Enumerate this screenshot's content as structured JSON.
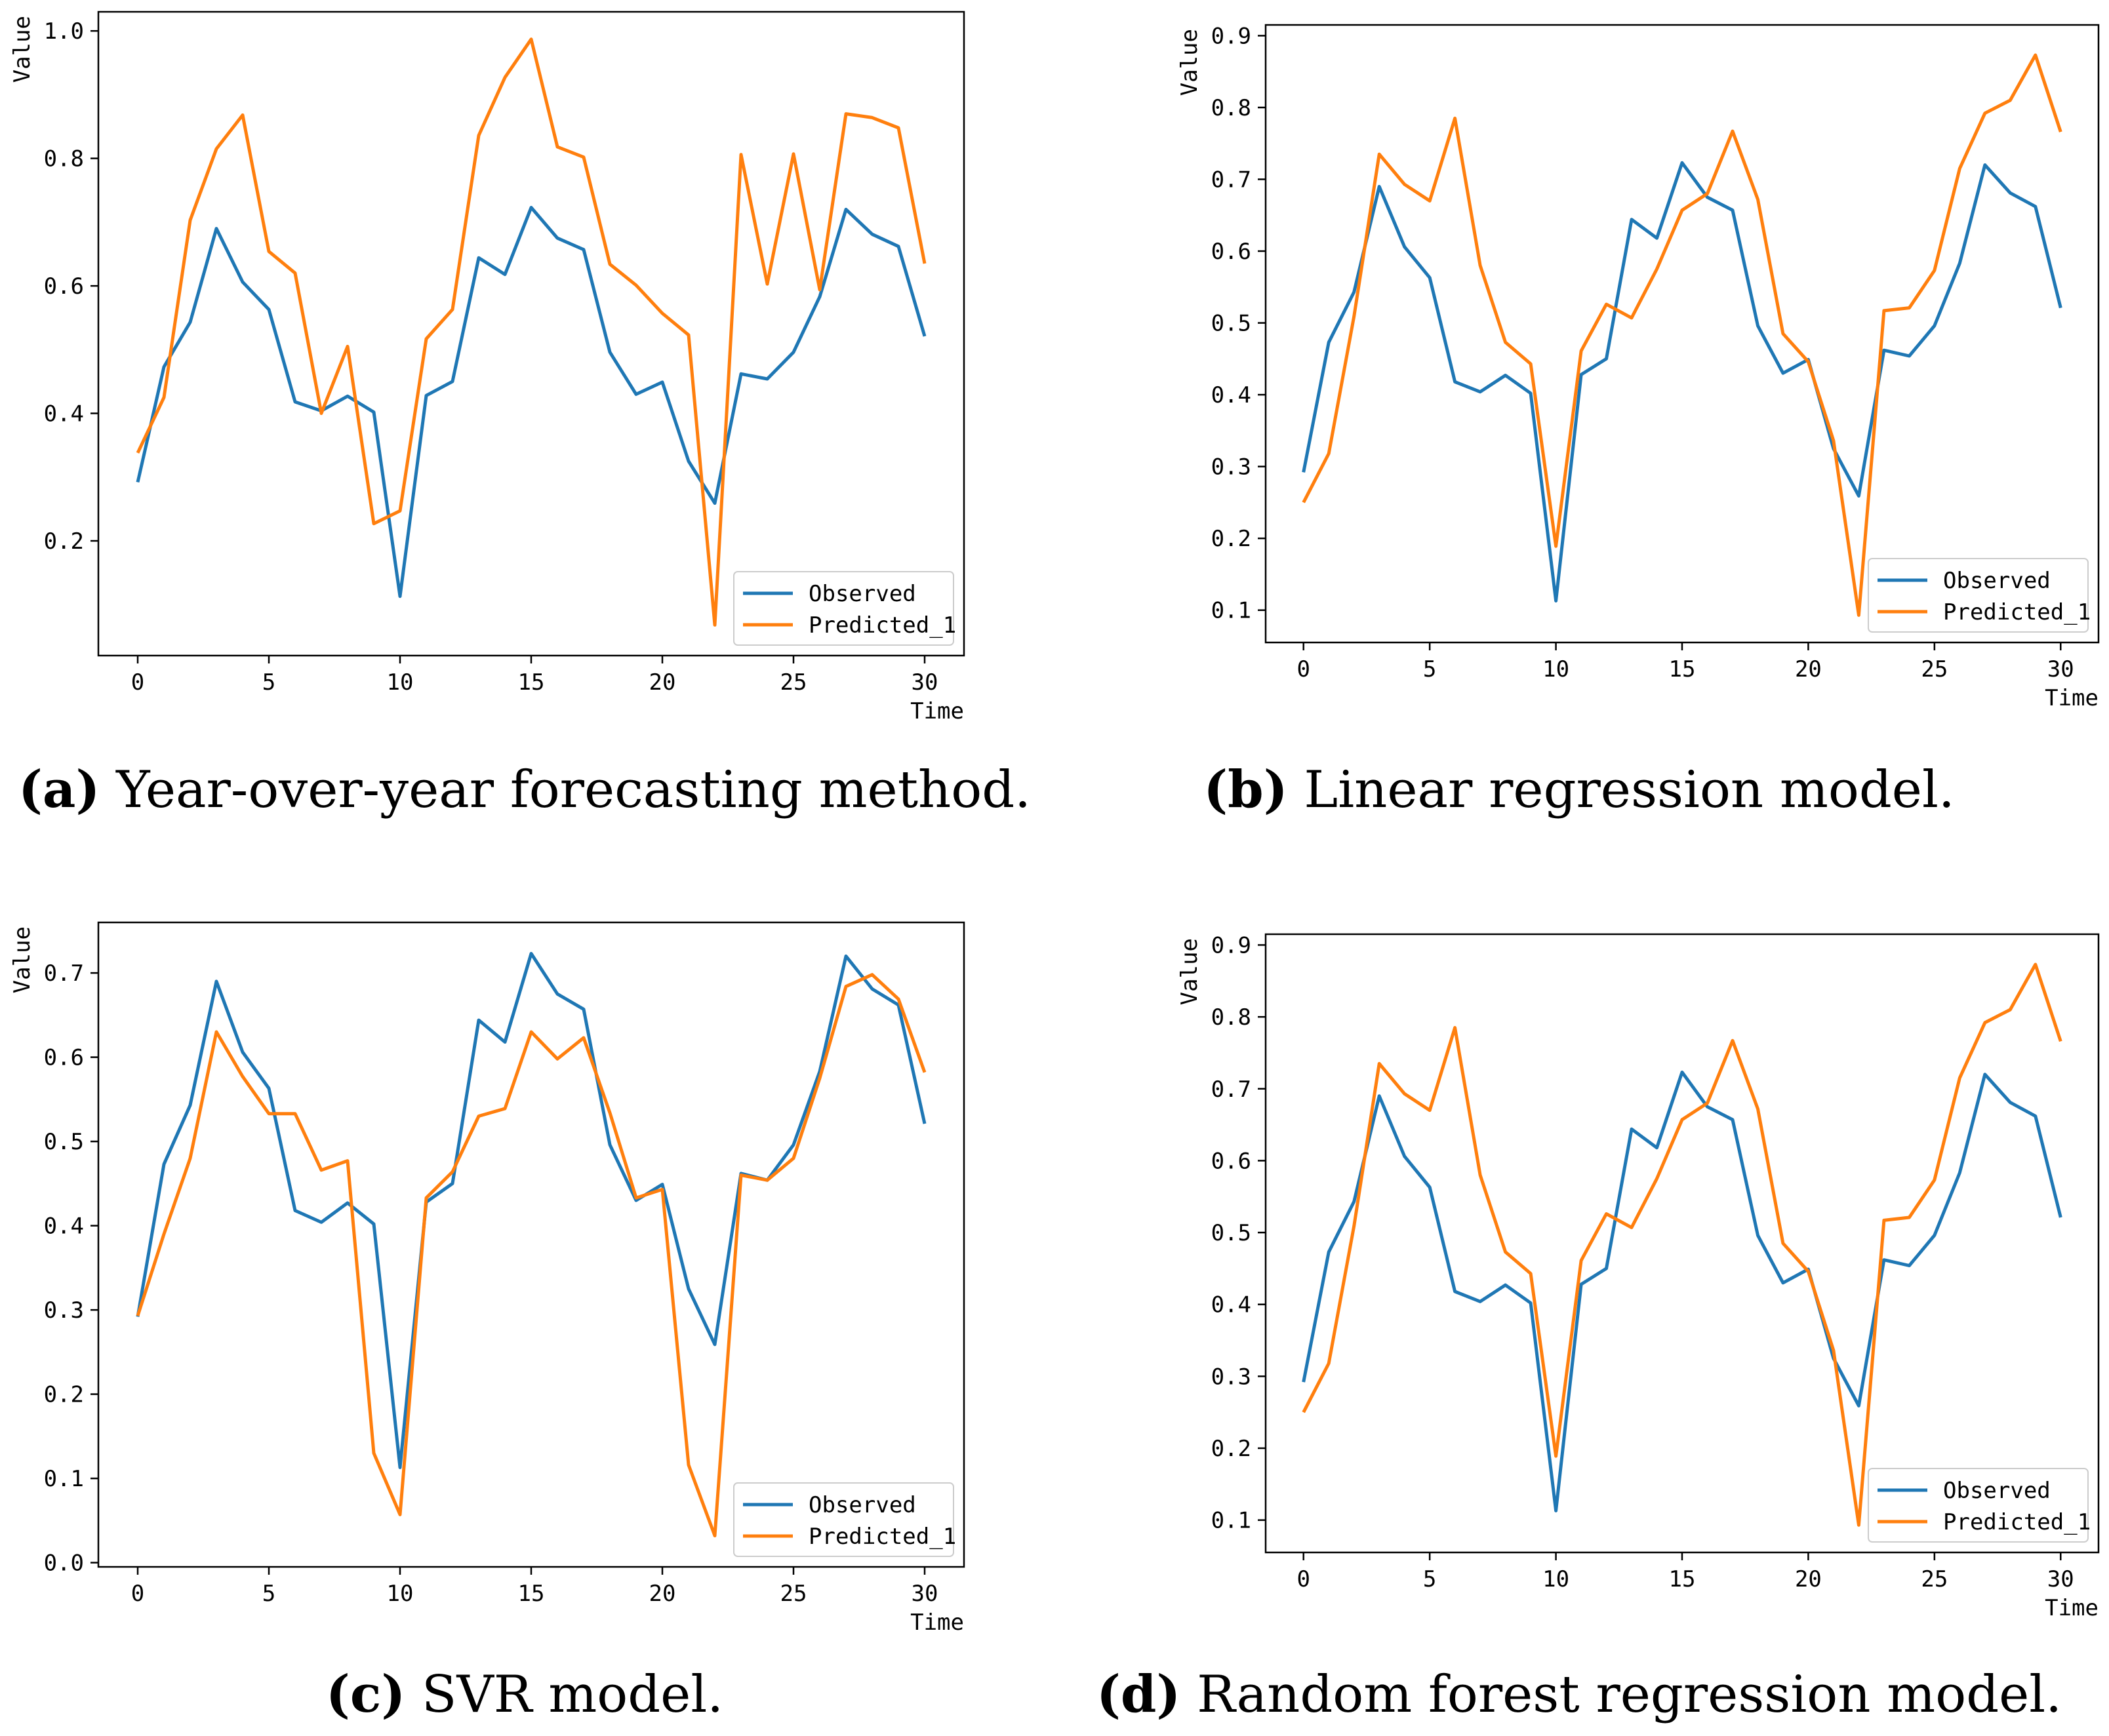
{
  "chart_data": [
    {
      "id": "a",
      "type": "line",
      "xlabel": "Time",
      "ylabel": "Value",
      "xlim": [
        -1.5,
        31.5
      ],
      "ylim": [
        0.02,
        1.03
      ],
      "xticks": [
        0,
        5,
        10,
        15,
        20,
        25,
        30
      ],
      "yticks": [
        0.2,
        0.4,
        0.6,
        0.8,
        1.0
      ],
      "ytick_labels": [
        "0.2",
        "0.4",
        "0.6",
        "0.8",
        "1.0"
      ],
      "legend": "lower-right",
      "series": [
        {
          "name": "Observed",
          "color": "#1f77b4",
          "values": [
            0.292,
            0.473,
            0.543,
            0.69,
            0.606,
            0.563,
            0.418,
            0.404,
            0.427,
            0.402,
            0.113,
            0.428,
            0.45,
            0.644,
            0.618,
            0.723,
            0.675,
            0.657,
            0.496,
            0.43,
            0.449,
            0.325,
            0.259,
            0.462,
            0.454,
            0.496,
            0.583,
            0.72,
            0.681,
            0.662,
            0.521
          ]
        },
        {
          "name": "Predicted_1",
          "color": "#ff7f0e",
          "values": [
            0.338,
            0.425,
            0.703,
            0.815,
            0.868,
            0.654,
            0.62,
            0.4,
            0.505,
            0.227,
            0.247,
            0.517,
            0.563,
            0.836,
            0.927,
            0.987,
            0.818,
            0.802,
            0.634,
            0.601,
            0.557,
            0.523,
            0.068,
            0.806,
            0.603,
            0.807,
            0.594,
            0.87,
            0.864,
            0.848,
            0.635
          ]
        }
      ],
      "caption": {
        "label": "(a)",
        "text": " Year-over-year forecasting method."
      }
    },
    {
      "id": "b",
      "type": "line",
      "xlabel": "Time",
      "ylabel": "Value",
      "xlim": [
        -1.5,
        31.5
      ],
      "ylim": [
        0.055,
        0.915
      ],
      "xticks": [
        0,
        5,
        10,
        15,
        20,
        25,
        30
      ],
      "yticks": [
        0.1,
        0.2,
        0.3,
        0.4,
        0.5,
        0.6,
        0.7,
        0.8,
        0.9
      ],
      "ytick_labels": [
        "0.1",
        "0.2",
        "0.3",
        "0.4",
        "0.5",
        "0.6",
        "0.7",
        "0.8",
        "0.9"
      ],
      "legend": "lower-right",
      "series": [
        {
          "name": "Observed",
          "color": "#1f77b4",
          "values": [
            0.292,
            0.473,
            0.543,
            0.69,
            0.606,
            0.563,
            0.418,
            0.404,
            0.427,
            0.402,
            0.113,
            0.428,
            0.45,
            0.644,
            0.618,
            0.723,
            0.675,
            0.657,
            0.496,
            0.43,
            0.449,
            0.325,
            0.259,
            0.462,
            0.454,
            0.496,
            0.583,
            0.72,
            0.681,
            0.662,
            0.521
          ]
        },
        {
          "name": "Predicted_1",
          "color": "#ff7f0e",
          "values": [
            0.25,
            0.318,
            0.509,
            0.735,
            0.693,
            0.67,
            0.785,
            0.58,
            0.473,
            0.443,
            0.189,
            0.461,
            0.526,
            0.507,
            0.575,
            0.657,
            0.68,
            0.767,
            0.672,
            0.485,
            0.446,
            0.336,
            0.093,
            0.517,
            0.521,
            0.573,
            0.715,
            0.792,
            0.81,
            0.873,
            0.766
          ]
        }
      ],
      "caption": {
        "label": "(b)",
        "text": " Linear regression model."
      }
    },
    {
      "id": "c",
      "type": "line",
      "xlabel": "Time",
      "ylabel": "Value",
      "xlim": [
        -1.5,
        31.5
      ],
      "ylim": [
        -0.005,
        0.76
      ],
      "xticks": [
        0,
        5,
        10,
        15,
        20,
        25,
        30
      ],
      "yticks": [
        0.0,
        0.1,
        0.2,
        0.3,
        0.4,
        0.5,
        0.6,
        0.7
      ],
      "ytick_labels": [
        "0.0",
        "0.1",
        "0.2",
        "0.3",
        "0.4",
        "0.5",
        "0.6",
        "0.7"
      ],
      "legend": "lower-right",
      "series": [
        {
          "name": "Observed",
          "color": "#1f77b4",
          "values": [
            0.292,
            0.473,
            0.543,
            0.69,
            0.606,
            0.563,
            0.418,
            0.404,
            0.427,
            0.402,
            0.113,
            0.428,
            0.45,
            0.644,
            0.618,
            0.723,
            0.675,
            0.657,
            0.496,
            0.43,
            0.449,
            0.325,
            0.259,
            0.462,
            0.454,
            0.496,
            0.583,
            0.72,
            0.681,
            0.662,
            0.521
          ]
        },
        {
          "name": "Predicted_1",
          "color": "#ff7f0e",
          "values": [
            0.293,
            0.39,
            0.48,
            0.63,
            0.577,
            0.533,
            0.533,
            0.466,
            0.477,
            0.13,
            0.057,
            0.433,
            0.464,
            0.53,
            0.539,
            0.63,
            0.598,
            0.623,
            0.534,
            0.433,
            0.443,
            0.116,
            0.032,
            0.46,
            0.454,
            0.48,
            0.575,
            0.684,
            0.698,
            0.669,
            0.582
          ]
        }
      ],
      "caption": {
        "label": "(c)",
        "text": " SVR model."
      }
    },
    {
      "id": "d",
      "type": "line",
      "xlabel": "Time",
      "ylabel": "Value",
      "xlim": [
        -1.5,
        31.5
      ],
      "ylim": [
        0.055,
        0.915
      ],
      "xticks": [
        0,
        5,
        10,
        15,
        20,
        25,
        30
      ],
      "yticks": [
        0.1,
        0.2,
        0.3,
        0.4,
        0.5,
        0.6,
        0.7,
        0.8,
        0.9
      ],
      "ytick_labels": [
        "0.1",
        "0.2",
        "0.3",
        "0.4",
        "0.5",
        "0.6",
        "0.7",
        "0.8",
        "0.9"
      ],
      "legend": "lower-right",
      "series": [
        {
          "name": "Observed",
          "color": "#1f77b4",
          "values": [
            0.292,
            0.473,
            0.543,
            0.69,
            0.606,
            0.563,
            0.418,
            0.404,
            0.427,
            0.402,
            0.113,
            0.428,
            0.45,
            0.644,
            0.618,
            0.723,
            0.675,
            0.657,
            0.496,
            0.43,
            0.449,
            0.325,
            0.259,
            0.462,
            0.454,
            0.496,
            0.583,
            0.72,
            0.681,
            0.662,
            0.521
          ]
        },
        {
          "name": "Predicted_1",
          "color": "#ff7f0e",
          "values": [
            0.25,
            0.318,
            0.509,
            0.735,
            0.693,
            0.67,
            0.785,
            0.58,
            0.473,
            0.443,
            0.189,
            0.461,
            0.526,
            0.507,
            0.575,
            0.657,
            0.68,
            0.767,
            0.672,
            0.485,
            0.446,
            0.336,
            0.093,
            0.517,
            0.521,
            0.573,
            0.715,
            0.792,
            0.81,
            0.873,
            0.766
          ]
        }
      ],
      "caption": {
        "label": "(d)",
        "text": " Random forest regression model."
      }
    }
  ]
}
